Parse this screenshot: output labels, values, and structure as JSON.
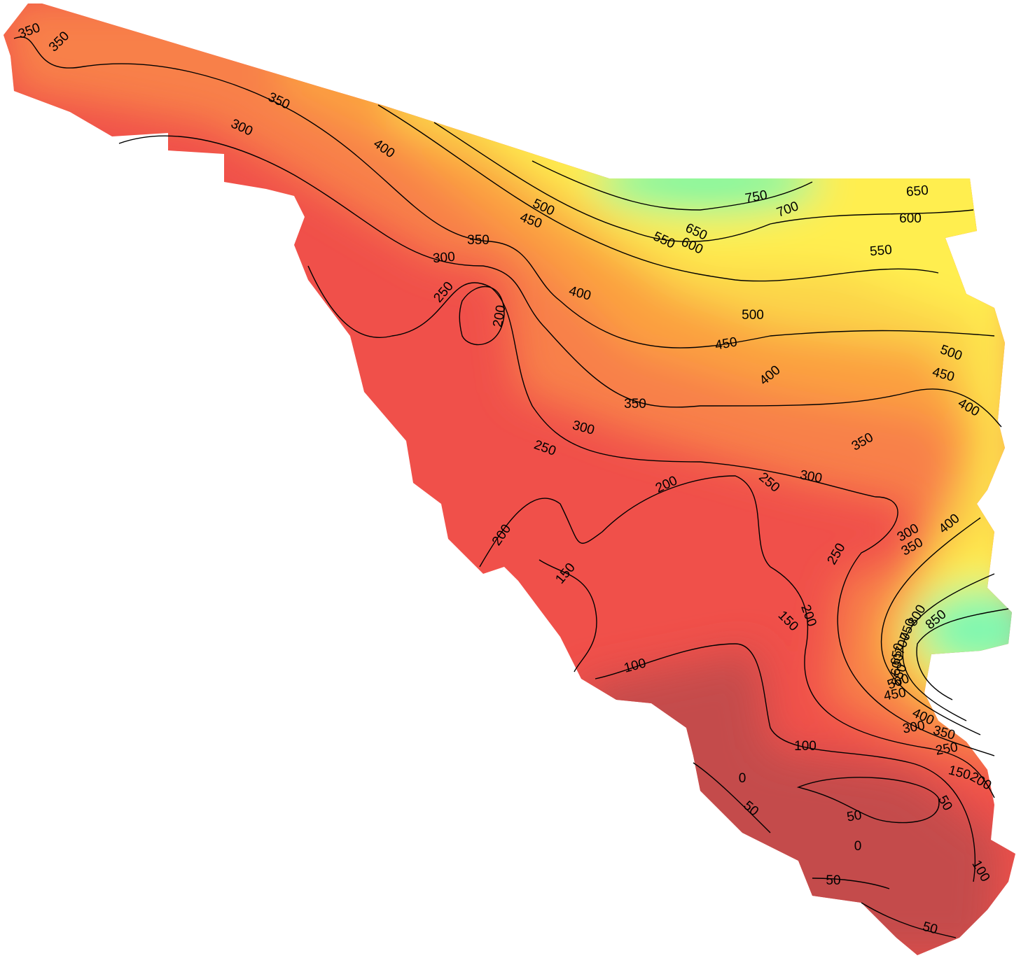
{
  "contour_labels": [
    350,
    350,
    350,
    300,
    400,
    500,
    450,
    350,
    300,
    250,
    200,
    400,
    750,
    700,
    650,
    650,
    600,
    550,
    600,
    550,
    500,
    450,
    500,
    450,
    400,
    400,
    350,
    350,
    300,
    250,
    300,
    250,
    200,
    200,
    150,
    150,
    200,
    250,
    300,
    350,
    400,
    850,
    800,
    750,
    700,
    650,
    600,
    550,
    500,
    450,
    400,
    300,
    350,
    250,
    150,
    200,
    100,
    100,
    50,
    0,
    50,
    50,
    0,
    100,
    50,
    50
  ]
}
